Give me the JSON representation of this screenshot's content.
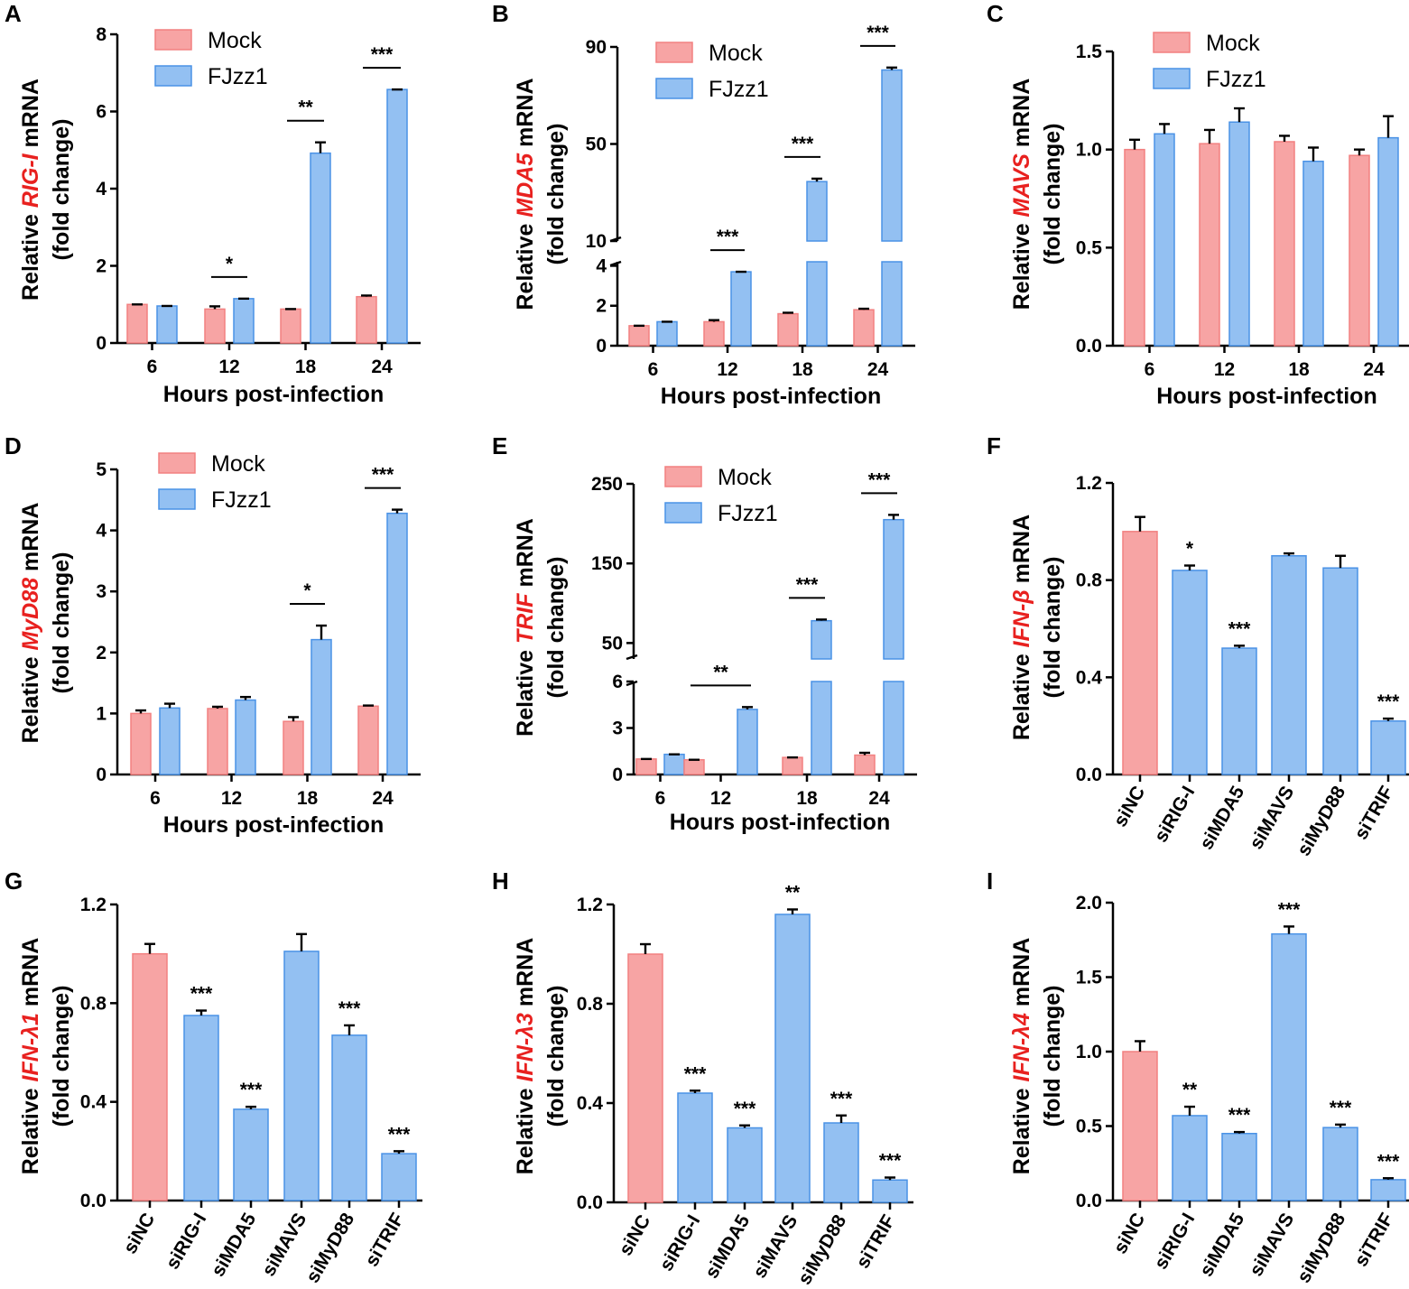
{
  "colors": {
    "mock_fill": "#f7a4a4",
    "mock_edge": "#f28080",
    "fjzz_fill": "#93c0f2",
    "fjzz_edge": "#4a92e6",
    "gene_label": "#e8211f"
  },
  "chart_data": [
    {
      "panel": "A",
      "type": "bar",
      "title": "",
      "ylabel_prefix": "Relative ",
      "gene": "RIG-I",
      "ylabel_suffix": " mRNA",
      "ylabel_line2": "(fold change)",
      "xlabel": "Hours post-infection",
      "categories": [
        "6",
        "12",
        "18",
        "24"
      ],
      "series": [
        {
          "name": "Mock",
          "values": [
            1.0,
            0.88,
            0.88,
            1.2
          ],
          "errors": [
            0.0,
            0.07,
            0.0,
            0.03
          ]
        },
        {
          "name": "FJzz1",
          "values": [
            0.96,
            1.15,
            4.92,
            6.57
          ],
          "errors": [
            0.0,
            0.0,
            0.28,
            0.0
          ]
        }
      ],
      "significance": [
        "",
        "*",
        "**",
        "***"
      ],
      "ylim": [
        0,
        8
      ],
      "yticks": [
        "0",
        "2",
        "4",
        "6",
        "8"
      ]
    },
    {
      "panel": "B",
      "type": "bar",
      "broken_axis": true,
      "title": "",
      "ylabel_prefix": "Relative ",
      "gene": "MDA5",
      "ylabel_suffix": " mRNA",
      "ylabel_line2": "(fold change)",
      "xlabel": "Hours post-infection",
      "categories": [
        "6",
        "12",
        "18",
        "24"
      ],
      "series": [
        {
          "name": "Mock",
          "values": [
            1.0,
            1.2,
            1.6,
            1.8
          ],
          "errors": [
            0.0,
            0.08,
            0.05,
            0.05
          ]
        },
        {
          "name": "FJzz1",
          "values": [
            1.2,
            3.7,
            34.5,
            80.5
          ],
          "errors": [
            0.0,
            0.0,
            1.2,
            1.0
          ]
        }
      ],
      "significance": [
        "",
        "***",
        "***",
        "***"
      ],
      "ylim_lower": [
        0,
        4.2
      ],
      "ylim_upper": [
        10,
        90
      ],
      "yticks": [
        "0",
        "2",
        "4",
        "10",
        "50",
        "90"
      ]
    },
    {
      "panel": "C",
      "type": "bar",
      "title": "",
      "ylabel_prefix": "Relative ",
      "gene": "MAVS",
      "ylabel_suffix": " mRNA",
      "ylabel_line2": "(fold change)",
      "xlabel": "Hours post-infection",
      "categories": [
        "6",
        "12",
        "18",
        "24"
      ],
      "series": [
        {
          "name": "Mock",
          "values": [
            1.0,
            1.03,
            1.04,
            0.97
          ],
          "errors": [
            0.05,
            0.07,
            0.03,
            0.03
          ]
        },
        {
          "name": "FJzz1",
          "values": [
            1.08,
            1.14,
            0.94,
            1.06
          ],
          "errors": [
            0.05,
            0.07,
            0.07,
            0.11
          ]
        }
      ],
      "significance": [
        "",
        "",
        "",
        ""
      ],
      "ylim": [
        0,
        1.5
      ],
      "yticks": [
        "0.0",
        "0.5",
        "1.0",
        "1.5"
      ]
    },
    {
      "panel": "D",
      "type": "bar",
      "title": "",
      "ylabel_prefix": "Relative ",
      "gene": "MyD88",
      "ylabel_suffix": " mRNA",
      "ylabel_line2": "(fold change)",
      "xlabel": "Hours post-infection",
      "categories": [
        "6",
        "12",
        "18",
        "24"
      ],
      "series": [
        {
          "name": "Mock",
          "values": [
            1.0,
            1.08,
            0.87,
            1.12
          ],
          "errors": [
            0.05,
            0.03,
            0.07,
            0.01
          ]
        },
        {
          "name": "FJzz1",
          "values": [
            1.09,
            1.22,
            2.21,
            4.28
          ],
          "errors": [
            0.07,
            0.05,
            0.23,
            0.06
          ]
        }
      ],
      "significance": [
        "",
        "",
        "*",
        "***"
      ],
      "ylim": [
        0,
        5
      ],
      "yticks": [
        "0",
        "1",
        "2",
        "3",
        "4",
        "5"
      ]
    },
    {
      "panel": "E",
      "type": "bar",
      "broken_axis": true,
      "title": "",
      "ylabel_prefix": "Relative ",
      "gene": "TRIF",
      "ylabel_suffix": " mRNA",
      "ylabel_line2": "(fold change)",
      "xlabel": "Hours post-infection",
      "categories": [
        "6",
        "12",
        "18",
        "24"
      ],
      "series": [
        {
          "name": "Mock",
          "values": [
            1.0,
            0.95,
            1.1,
            1.25
          ],
          "errors": [
            0.0,
            0.0,
            0.0,
            0.15
          ]
        },
        {
          "name": "FJzz1",
          "values": [
            1.3,
            4.2,
            78,
            205
          ],
          "errors": [
            0.0,
            0.15,
            1.5,
            6.0
          ]
        }
      ],
      "significance": [
        "",
        "**",
        "***",
        "***"
      ],
      "ylim_lower": [
        0,
        6
      ],
      "ylim_upper": [
        30,
        250
      ],
      "yticks": [
        "0",
        "3",
        "6",
        "50",
        "150",
        "250"
      ]
    },
    {
      "panel": "F",
      "type": "bar",
      "title": "",
      "ylabel_prefix": "Relative ",
      "gene": "IFN-β",
      "ylabel_suffix": " mRNA",
      "ylabel_line2": "(fold change)",
      "xlabel": "",
      "categories": [
        "siNC",
        "siRIG-I",
        "siMDA5",
        "siMAVS",
        "siMyD88",
        "siTRIF"
      ],
      "values": [
        1.0,
        0.84,
        0.52,
        0.9,
        0.85,
        0.22
      ],
      "errors": [
        0.06,
        0.02,
        0.01,
        0.01,
        0.05,
        0.01
      ],
      "significance": [
        "",
        "*",
        "***",
        "",
        "",
        "***"
      ],
      "ylim": [
        0,
        1.2
      ],
      "yticks": [
        "0.0",
        "0.4",
        "0.8",
        "1.2"
      ]
    },
    {
      "panel": "G",
      "type": "bar",
      "title": "",
      "ylabel_prefix": "Relative ",
      "gene": "IFN-λ1",
      "ylabel_suffix": " mRNA",
      "ylabel_line2": "(fold change)",
      "xlabel": "",
      "categories": [
        "siNC",
        "siRIG-I",
        "siMDA5",
        "siMAVS",
        "siMyD88",
        "siTRIF"
      ],
      "values": [
        1.0,
        0.75,
        0.37,
        1.01,
        0.67,
        0.19
      ],
      "errors": [
        0.04,
        0.02,
        0.01,
        0.07,
        0.04,
        0.01
      ],
      "significance": [
        "",
        "***",
        "***",
        "",
        "***",
        "***"
      ],
      "ylim": [
        0,
        1.2
      ],
      "yticks": [
        "0.0",
        "0.4",
        "0.8",
        "1.2"
      ]
    },
    {
      "panel": "H",
      "type": "bar",
      "title": "",
      "ylabel_prefix": "Relative ",
      "gene": "IFN-λ3",
      "ylabel_suffix": " mRNA",
      "ylabel_line2": "(fold change)",
      "xlabel": "",
      "categories": [
        "siNC",
        "siRIG-I",
        "siMDA5",
        "siMAVS",
        "siMyD88",
        "siTRIF"
      ],
      "values": [
        1.0,
        0.44,
        0.3,
        1.16,
        0.32,
        0.09
      ],
      "errors": [
        0.04,
        0.01,
        0.01,
        0.02,
        0.03,
        0.01
      ],
      "significance": [
        "",
        "***",
        "***",
        "**",
        "***",
        "***"
      ],
      "ylim": [
        0,
        1.2
      ],
      "yticks": [
        "0.0",
        "0.4",
        "0.8",
        "1.2"
      ]
    },
    {
      "panel": "I",
      "type": "bar",
      "title": "",
      "ylabel_prefix": "Relative ",
      "gene": "IFN-λ4",
      "ylabel_suffix": " mRNA",
      "ylabel_line2": "(fold change)",
      "xlabel": "",
      "categories": [
        "siNC",
        "siRIG-I",
        "siMDA5",
        "siMAVS",
        "siMyD88",
        "siTRIF"
      ],
      "values": [
        1.0,
        0.57,
        0.45,
        1.79,
        0.49,
        0.14
      ],
      "errors": [
        0.07,
        0.06,
        0.01,
        0.05,
        0.02,
        0.01
      ],
      "significance": [
        "",
        "**",
        "***",
        "***",
        "***",
        "***"
      ],
      "ylim": [
        0,
        2.0
      ],
      "yticks": [
        "0.0",
        "0.5",
        "1.0",
        "1.5",
        "2.0"
      ]
    }
  ]
}
